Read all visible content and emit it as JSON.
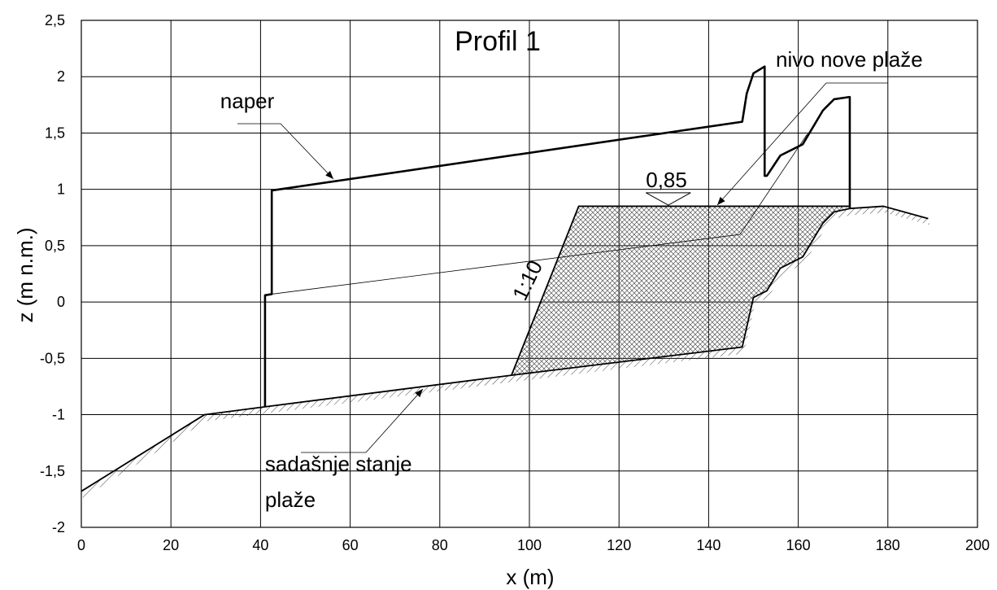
{
  "chart_data": {
    "type": "line",
    "title": "Profil 1",
    "xlabel": "x (m)",
    "ylabel": "z (m n.m.)",
    "xlim": [
      0,
      200
    ],
    "ylim": [
      -2,
      2.5
    ],
    "grid": true,
    "x_ticks": [
      {
        "value": 0,
        "label": "0"
      },
      {
        "value": 20,
        "label": "20"
      },
      {
        "value": 40,
        "label": "40"
      },
      {
        "value": 60,
        "label": "60"
      },
      {
        "value": 80,
        "label": "80"
      },
      {
        "value": 100,
        "label": "100"
      },
      {
        "value": 120,
        "label": "120"
      },
      {
        "value": 140,
        "label": "140"
      },
      {
        "value": 160,
        "label": "160"
      },
      {
        "value": 180,
        "label": "180"
      },
      {
        "value": 200,
        "label": "200"
      }
    ],
    "y_ticks": [
      {
        "value": -2,
        "label": "-2"
      },
      {
        "value": -1.5,
        "label": "-1,5"
      },
      {
        "value": -1,
        "label": "-1"
      },
      {
        "value": -0.5,
        "label": "-0,5"
      },
      {
        "value": 0,
        "label": "0"
      },
      {
        "value": 0.5,
        "label": "0,5"
      },
      {
        "value": 1,
        "label": "1"
      },
      {
        "value": 1.5,
        "label": "1,5"
      },
      {
        "value": 2,
        "label": "2"
      },
      {
        "value": 2.5,
        "label": "2,5"
      }
    ],
    "series": [
      {
        "x": [
          0,
          27.5,
          41,
          96,
          147.5,
          150,
          153,
          156,
          161,
          165.5,
          168,
          171.5,
          179,
          189
        ],
        "y": [
          -1.68,
          -1.0,
          -0.93,
          -0.65,
          -0.4,
          0.04,
          0.1,
          0.3,
          0.4,
          0.7,
          0.8,
          0.83,
          0.85,
          0.74
        ]
      },
      {
        "x": [
          41,
          41,
          42.5,
          42.5,
          147.5,
          148.5,
          150,
          152.5,
          152.5,
          153,
          156,
          161,
          165.5,
          168,
          171.5,
          171.5
        ],
        "y": [
          -0.93,
          0.06,
          0.07,
          0.99,
          1.6,
          1.85,
          2.03,
          2.09,
          1.12,
          1.12,
          1.3,
          1.4,
          1.7,
          1.8,
          1.82,
          0.83
        ]
      },
      {
        "x": [
          96,
          111,
          171.5
        ],
        "y": [
          -0.65,
          0.85,
          0.85
        ]
      }
    ],
    "fill_region": {
      "x": [
        96,
        111,
        171.5,
        168,
        165.5,
        161,
        156,
        153,
        150,
        147.5
      ],
      "y": [
        -0.65,
        0.85,
        0.85,
        0.8,
        0.7,
        0.4,
        0.3,
        0.1,
        0.04,
        -0.4
      ]
    },
    "leader_lines": [
      {
        "x": [
          42.5,
          147
        ],
        "y": [
          0.07,
          0.6
        ]
      },
      {
        "x": [
          147,
          162
        ],
        "y": [
          0.6,
          1.49
        ]
      }
    ],
    "annotations": [
      {
        "text": "naper",
        "x": 31,
        "y": 1.72
      },
      {
        "text": "nivo nove plaže",
        "x": 155,
        "y": 2.09
      },
      {
        "text": "0,85",
        "x": 126,
        "y": 1.02
      },
      {
        "text": "1:10",
        "x": 99,
        "y": 0.0
      },
      {
        "text": "sadašnje stanje",
        "x": 41,
        "y": -1.5
      },
      {
        "text": "plaže",
        "x": 41,
        "y": -1.82
      }
    ]
  }
}
